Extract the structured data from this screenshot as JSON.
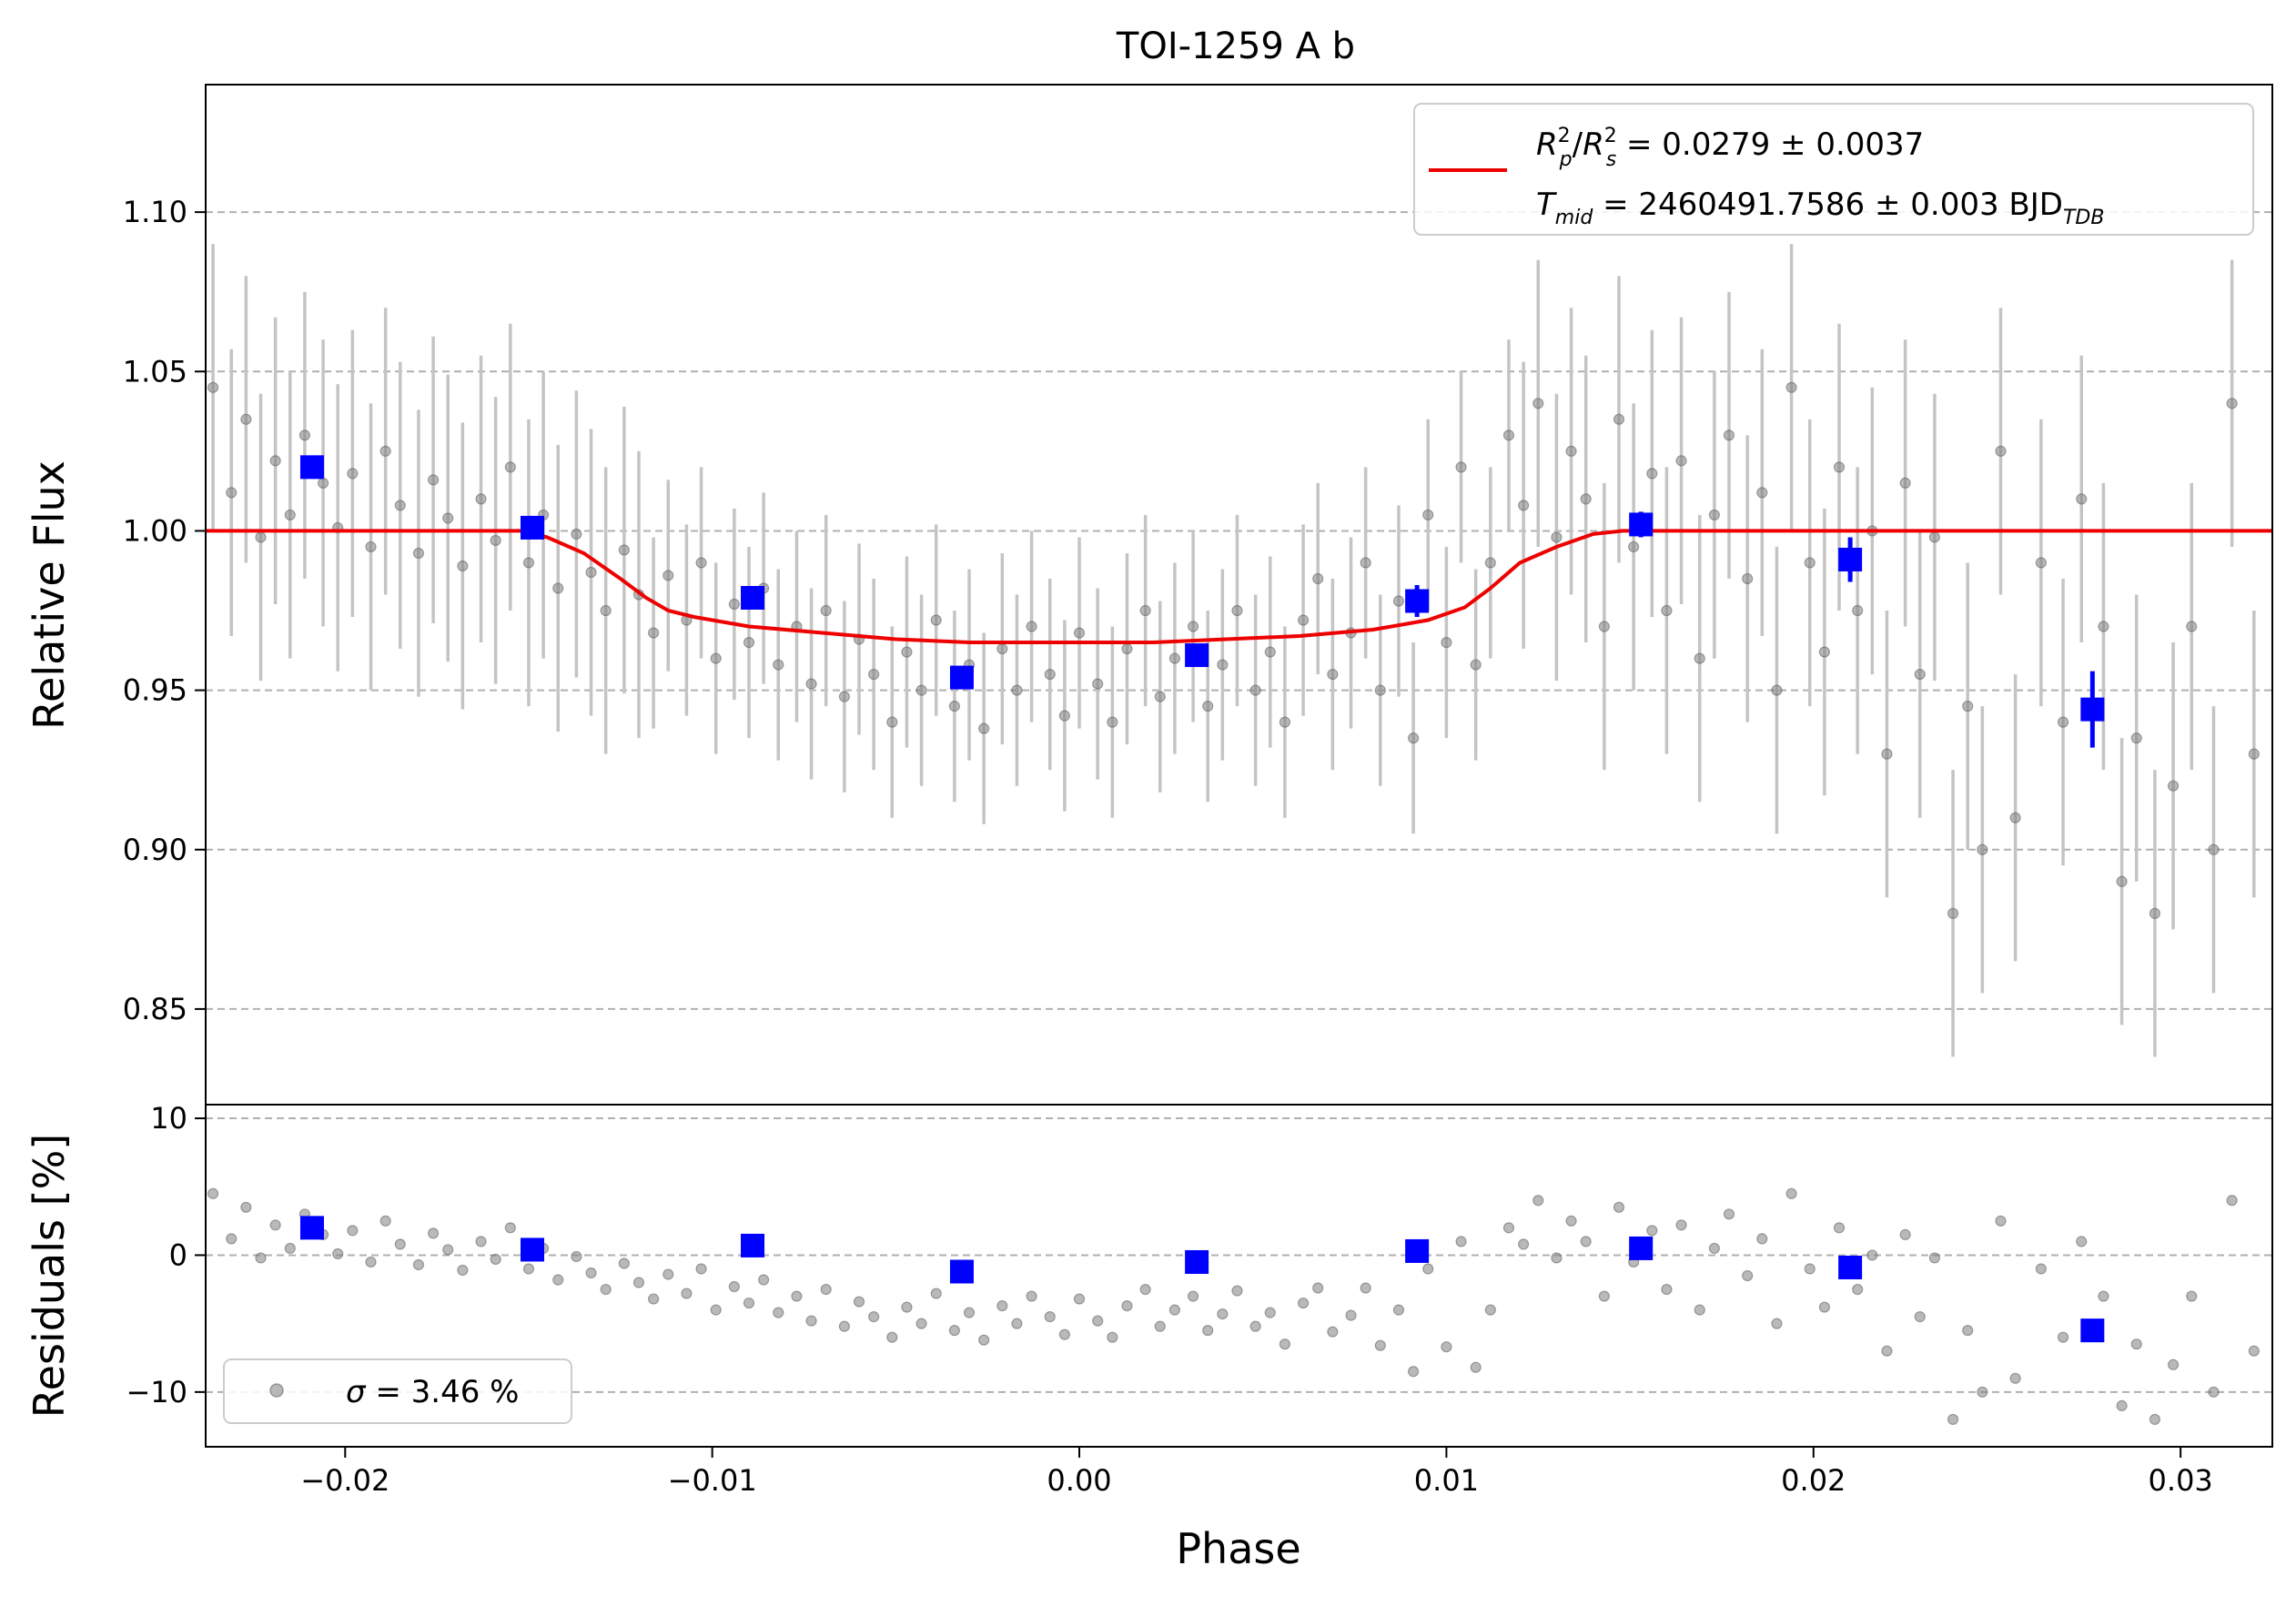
{
  "chart_data": [
    {
      "type": "scatter",
      "panel": "light-curve",
      "title": "TOI-1259 A b",
      "xlabel": "",
      "ylabel": "Relative Flux",
      "xlim": [
        -0.0238,
        0.0325
      ],
      "ylim": [
        0.82,
        1.14
      ],
      "x_ticks": [
        -0.02,
        -0.01,
        0.0,
        0.01,
        0.02,
        0.03
      ],
      "x_tick_labels": [
        "−0.02",
        "−0.01",
        "0.00",
        "0.01",
        "0.02",
        "0.03"
      ],
      "y_ticks": [
        0.85,
        0.9,
        0.95,
        1.0,
        1.05,
        1.1
      ],
      "y_tick_labels": [
        "0.85",
        "0.90",
        "0.95",
        "1.00",
        "1.05",
        "1.10"
      ],
      "grid": "horizontal dashed",
      "legend_position": "top-right",
      "legend": {
        "line1_lhs_base": "R",
        "line1_lhs_sub": "p",
        "line1_lhs_sup": "2",
        "line1_lhs_slash": "/",
        "line1_lhs_base2": "R",
        "line1_lhs_sub2": "s",
        "line1_lhs_sup2": "2",
        "line1_value": " = 0.0279 ± 0.0037",
        "line2_lhs_base": "T",
        "line2_lhs_sub": "mid",
        "line2_value": " = 2460491.7586 ± 0.003 BJD",
        "line2_unit_sub": "TDB"
      },
      "colors": {
        "model": "#ee0000",
        "binned": "#0000ff",
        "raw": "#808080",
        "errorbar": "#c4c4c4",
        "grid": "#b0b0b0"
      },
      "model": {
        "x": [
          -0.0238,
          -0.0152,
          -0.0145,
          -0.0135,
          -0.0125,
          -0.0118,
          -0.0112,
          -0.0105,
          -0.009,
          -0.007,
          -0.005,
          -0.003,
          -0.001,
          0.0,
          0.002,
          0.004,
          0.006,
          0.008,
          0.0095,
          0.0105,
          0.0112,
          0.012,
          0.013,
          0.014,
          0.0148,
          0.0155,
          0.0325
        ],
        "y": [
          1.0,
          1.0,
          0.998,
          0.993,
          0.985,
          0.979,
          0.975,
          0.973,
          0.97,
          0.968,
          0.966,
          0.965,
          0.965,
          0.965,
          0.965,
          0.966,
          0.967,
          0.969,
          0.972,
          0.976,
          0.982,
          0.99,
          0.995,
          0.999,
          1.0,
          1.0,
          1.0
        ]
      },
      "binned": {
        "x": [
          -0.0209,
          -0.0149,
          -0.0089,
          -0.0032,
          0.0032,
          0.0092,
          0.0153,
          0.021,
          0.0276
        ],
        "y": [
          1.02,
          1.001,
          0.979,
          0.954,
          0.961,
          0.978,
          1.002,
          0.991,
          0.944
        ],
        "yerr": [
          0.003,
          0.003,
          0.003,
          0.003,
          0.003,
          0.005,
          0.004,
          0.007,
          0.012
        ]
      },
      "raw_sample": {
        "x": [
          -0.0236,
          -0.0231,
          -0.0227,
          -0.0223,
          -0.0219,
          -0.0215,
          -0.0211,
          -0.0206,
          -0.0202,
          -0.0198,
          -0.0193,
          -0.0189,
          -0.0185,
          -0.018,
          -0.0176,
          -0.0172,
          -0.0168,
          -0.0163,
          -0.0159,
          -0.0155,
          -0.015,
          -0.0146,
          -0.0142,
          -0.0137,
          -0.0133,
          -0.0129,
          -0.0124,
          -0.012,
          -0.0116,
          -0.0112,
          -0.0107,
          -0.0103,
          -0.0099,
          -0.0094,
          -0.009,
          -0.0086,
          -0.0082,
          -0.0077,
          -0.0073,
          -0.0069,
          -0.0064,
          -0.006,
          -0.0056,
          -0.0051,
          -0.0047,
          -0.0043,
          -0.0039,
          -0.0034,
          -0.003,
          -0.0026,
          -0.0021,
          -0.0017,
          -0.0013,
          -0.0008,
          -0.0004,
          0.0,
          0.0005,
          0.0009,
          0.0013,
          0.0018,
          0.0022,
          0.0026,
          0.0031,
          0.0035,
          0.0039,
          0.0043,
          0.0048,
          0.0052,
          0.0056,
          0.0061,
          0.0065,
          0.0069,
          0.0074,
          0.0078,
          0.0082,
          0.0087,
          0.0091,
          0.0095,
          0.01,
          0.0104,
          0.0108,
          0.0112,
          0.0117,
          0.0121,
          0.0125,
          0.013,
          0.0134,
          0.0138,
          0.0143,
          0.0147,
          0.0151,
          0.0156,
          0.016,
          0.0164,
          0.0169,
          0.0173,
          0.0177,
          0.0182,
          0.0186,
          0.019,
          0.0194,
          0.0199,
          0.0203,
          0.0207,
          0.0212,
          0.0216,
          0.022,
          0.0225,
          0.0229,
          0.0233,
          0.0238,
          0.0242,
          0.0246,
          0.0251,
          0.0255,
          0.0262,
          0.0268,
          0.0273,
          0.0279,
          0.0284,
          0.0288,
          0.0293,
          0.0298,
          0.0303,
          0.0309,
          0.0314,
          0.032
        ],
        "y": [
          1.045,
          1.012,
          1.035,
          0.998,
          1.022,
          1.005,
          1.03,
          1.015,
          1.001,
          1.018,
          0.995,
          1.025,
          1.008,
          0.993,
          1.016,
          1.004,
          0.989,
          1.01,
          0.997,
          1.02,
          0.99,
          1.005,
          0.982,
          0.999,
          0.987,
          0.975,
          0.994,
          0.98,
          0.968,
          0.986,
          0.972,
          0.99,
          0.96,
          0.977,
          0.965,
          0.982,
          0.958,
          0.97,
          0.952,
          0.975,
          0.948,
          0.966,
          0.955,
          0.94,
          0.962,
          0.95,
          0.972,
          0.945,
          0.958,
          0.938,
          0.963,
          0.95,
          0.97,
          0.955,
          0.942,
          0.968,
          0.952,
          0.94,
          0.963,
          0.975,
          0.948,
          0.96,
          0.97,
          0.945,
          0.958,
          0.975,
          0.95,
          0.962,
          0.94,
          0.972,
          0.985,
          0.955,
          0.968,
          0.99,
          0.95,
          0.978,
          0.935,
          1.005,
          0.965,
          1.02,
          0.958,
          0.99,
          1.03,
          1.008,
          1.04,
          0.998,
          1.025,
          1.01,
          0.97,
          1.035,
          0.995,
          1.018,
          0.975,
          1.022,
          0.96,
          1.005,
          1.03,
          0.985,
          1.012,
          0.95,
          1.045,
          0.99,
          0.962,
          1.02,
          0.975,
          1.0,
          0.93,
          1.015,
          0.955,
          0.998,
          0.88,
          0.945,
          0.9,
          1.025,
          0.91,
          0.99,
          0.94,
          1.01,
          0.97,
          0.89,
          0.935,
          0.88,
          0.92,
          0.97,
          0.9,
          1.04,
          0.93
        ]
      }
    },
    {
      "type": "scatter",
      "panel": "residuals",
      "xlabel": "Phase",
      "ylabel": "Residuals [%]",
      "xlim": [
        -0.0238,
        0.0325
      ],
      "ylim": [
        -14,
        11
      ],
      "y_ticks": [
        -10,
        0,
        10
      ],
      "y_tick_labels": [
        "−10",
        "0",
        "10"
      ],
      "grid": "horizontal dashed",
      "legend_position": "bottom-left",
      "legend": {
        "sigma_symbol": "σ",
        "sigma_text": " = 3.46 %"
      },
      "binned": {
        "x": [
          -0.0209,
          -0.0149,
          -0.0089,
          -0.0032,
          0.0032,
          0.0092,
          0.0153,
          0.021,
          0.0276
        ],
        "y": [
          2.0,
          0.4,
          0.7,
          -1.2,
          -0.5,
          0.3,
          0.5,
          -0.9,
          -5.5
        ]
      },
      "raw_sample": {
        "x": [
          -0.0236,
          -0.0231,
          -0.0227,
          -0.0223,
          -0.0219,
          -0.0215,
          -0.0211,
          -0.0206,
          -0.0202,
          -0.0198,
          -0.0193,
          -0.0189,
          -0.0185,
          -0.018,
          -0.0176,
          -0.0172,
          -0.0168,
          -0.0163,
          -0.0159,
          -0.0155,
          -0.015,
          -0.0146,
          -0.0142,
          -0.0137,
          -0.0133,
          -0.0129,
          -0.0124,
          -0.012,
          -0.0116,
          -0.0112,
          -0.0107,
          -0.0103,
          -0.0099,
          -0.0094,
          -0.009,
          -0.0086,
          -0.0082,
          -0.0077,
          -0.0073,
          -0.0069,
          -0.0064,
          -0.006,
          -0.0056,
          -0.0051,
          -0.0047,
          -0.0043,
          -0.0039,
          -0.0034,
          -0.003,
          -0.0026,
          -0.0021,
          -0.0017,
          -0.0013,
          -0.0008,
          -0.0004,
          0.0,
          0.0005,
          0.0009,
          0.0013,
          0.0018,
          0.0022,
          0.0026,
          0.0031,
          0.0035,
          0.0039,
          0.0043,
          0.0048,
          0.0052,
          0.0056,
          0.0061,
          0.0065,
          0.0069,
          0.0074,
          0.0078,
          0.0082,
          0.0087,
          0.0091,
          0.0095,
          0.01,
          0.0104,
          0.0108,
          0.0112,
          0.0117,
          0.0121,
          0.0125,
          0.013,
          0.0134,
          0.0138,
          0.0143,
          0.0147,
          0.0151,
          0.0156,
          0.016,
          0.0164,
          0.0169,
          0.0173,
          0.0177,
          0.0182,
          0.0186,
          0.019,
          0.0194,
          0.0199,
          0.0203,
          0.0207,
          0.0212,
          0.0216,
          0.022,
          0.0225,
          0.0229,
          0.0233,
          0.0238,
          0.0242,
          0.0246,
          0.0251,
          0.0255,
          0.0262,
          0.0268,
          0.0273,
          0.0279,
          0.0284,
          0.0288,
          0.0293,
          0.0298,
          0.0303,
          0.0309,
          0.0314,
          0.032
        ],
        "y": [
          4.5,
          1.2,
          3.5,
          -0.2,
          2.2,
          0.5,
          3.0,
          1.5,
          0.1,
          1.8,
          -0.5,
          2.5,
          0.8,
          -0.7,
          1.6,
          0.4,
          -1.1,
          1.0,
          -0.3,
          2.0,
          -1.0,
          0.5,
          -1.8,
          -0.1,
          -1.3,
          -2.5,
          -0.6,
          -2.0,
          -3.2,
          -1.4,
          -2.8,
          -1.0,
          -4.0,
          -2.3,
          -3.5,
          -1.8,
          -4.2,
          -3.0,
          -4.8,
          -2.5,
          -5.2,
          -3.4,
          -4.5,
          -6.0,
          -3.8,
          -5.0,
          -2.8,
          -5.5,
          -4.2,
          -6.2,
          -3.7,
          -5.0,
          -3.0,
          -4.5,
          -5.8,
          -3.2,
          -4.8,
          -6.0,
          -3.7,
          -2.5,
          -5.2,
          -4.0,
          -3.0,
          -5.5,
          -4.3,
          -2.6,
          -5.2,
          -4.2,
          -6.5,
          -3.5,
          -2.4,
          -5.6,
          -4.4,
          -2.4,
          -6.6,
          -4.0,
          -8.5,
          -1.0,
          -6.7,
          1.0,
          -8.2,
          -4.0,
          2.0,
          0.8,
          4.0,
          -0.2,
          2.5,
          1.0,
          -3.0,
          3.5,
          -0.5,
          1.8,
          -2.5,
          2.2,
          -4.0,
          0.5,
          3.0,
          -1.5,
          1.2,
          -5.0,
          4.5,
          -1.0,
          -3.8,
          2.0,
          -2.5,
          0.0,
          -7.0,
          1.5,
          -4.5,
          -0.2,
          -12.0,
          -5.5,
          -10.0,
          2.5,
          -9.0,
          -1.0,
          -6.0,
          1.0,
          -3.0,
          -11.0,
          -6.5,
          -12.0,
          -8.0,
          -3.0,
          -10.0,
          4.0,
          -7.0
        ]
      }
    }
  ]
}
